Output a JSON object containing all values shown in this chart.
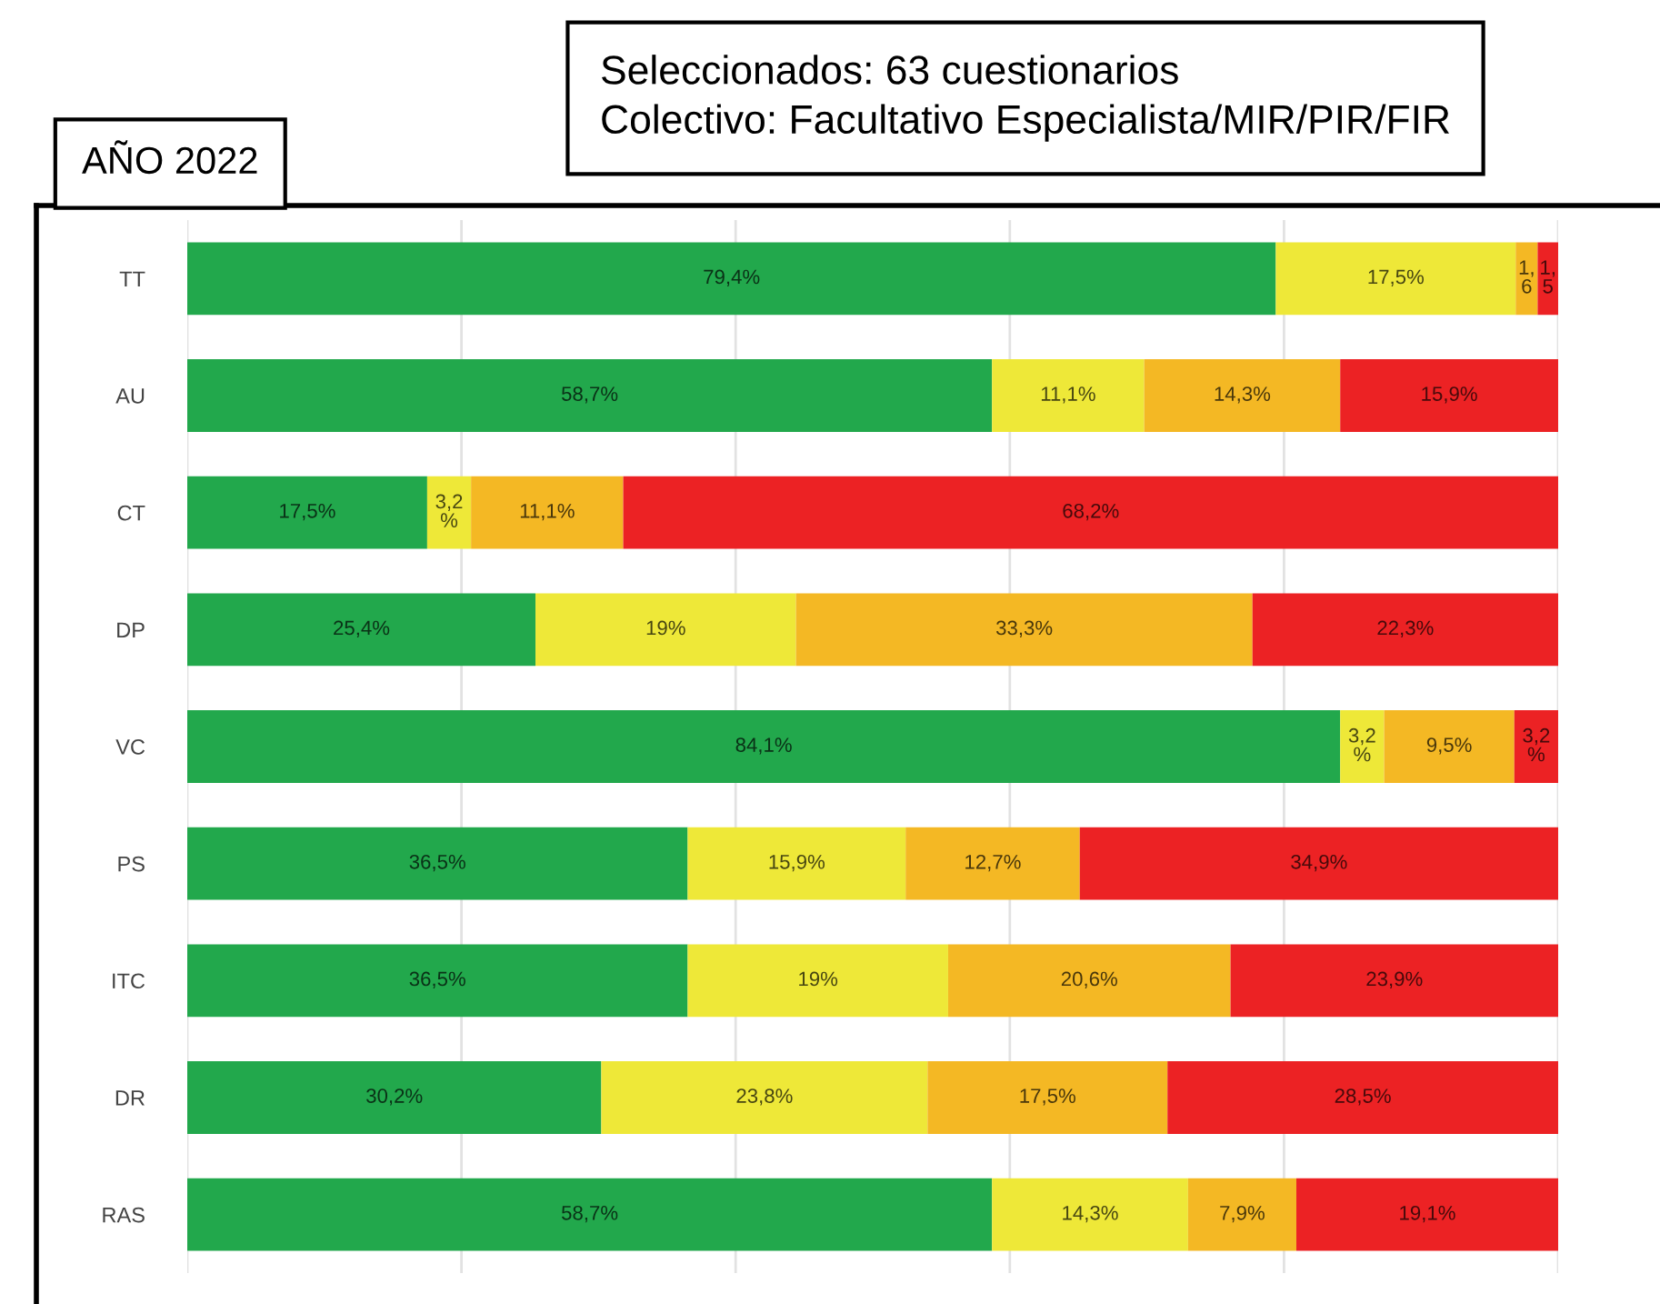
{
  "chart_data": {
    "type": "bar",
    "orientation": "horizontal",
    "stacked": true,
    "title": "AÑO 2022",
    "subtitle": "Seleccionados: 63 cuestionarios\nColectivo: Facultativo Especialista/MIR/PIR/FIR",
    "categories": [
      "TT",
      "AU",
      "CT",
      "DP",
      "VC",
      "PS",
      "ITC",
      "DR",
      "RAS"
    ],
    "series": [
      {
        "color": "#22a84c",
        "values": [
          79.4,
          58.7,
          17.5,
          25.4,
          84.1,
          36.5,
          36.5,
          30.2,
          58.7
        ],
        "value_labels": [
          "79,4%",
          "58,7%",
          "17,5%",
          "25,4%",
          "84,1%",
          "36,5%",
          "36,5%",
          "30,2%",
          "58,7%"
        ]
      },
      {
        "color": "#eee838",
        "values": [
          17.5,
          11.1,
          3.2,
          19,
          3.2,
          15.9,
          19,
          23.8,
          14.3
        ],
        "value_labels": [
          "17,5%",
          "11,1%",
          "3,2%",
          "19%",
          "3,2%",
          "15,9%",
          "19%",
          "23,8%",
          "14,3%"
        ]
      },
      {
        "color": "#f4b824",
        "values": [
          1.6,
          14.3,
          11.1,
          33.3,
          9.5,
          12.7,
          20.6,
          17.5,
          7.9
        ],
        "value_labels": [
          "1,6",
          "14,3%",
          "11,1%",
          "33,3%",
          "9,5%",
          "12,7%",
          "20,6%",
          "17,5%",
          "7,9%"
        ]
      },
      {
        "color": "#ec2224",
        "values": [
          1.5,
          15.9,
          68.2,
          22.3,
          3.2,
          34.9,
          23.9,
          28.5,
          19.1
        ],
        "value_labels": [
          "1,5",
          "15,9%",
          "68,2%",
          "22,3%",
          "3,2%",
          "34,9%",
          "23,9%",
          "28,5%",
          "19,1%"
        ]
      }
    ],
    "xlim": [
      0,
      100
    ],
    "xticks": [
      {
        "value": 0,
        "label": null
      },
      {
        "value": 20,
        "label": null
      },
      {
        "value": 40,
        "label": null
      },
      {
        "value": 60,
        "label": null
      },
      {
        "value": 80,
        "label": null
      },
      {
        "value": 100,
        "label": null
      }
    ],
    "grid": "x",
    "tick_labels": "y"
  }
}
